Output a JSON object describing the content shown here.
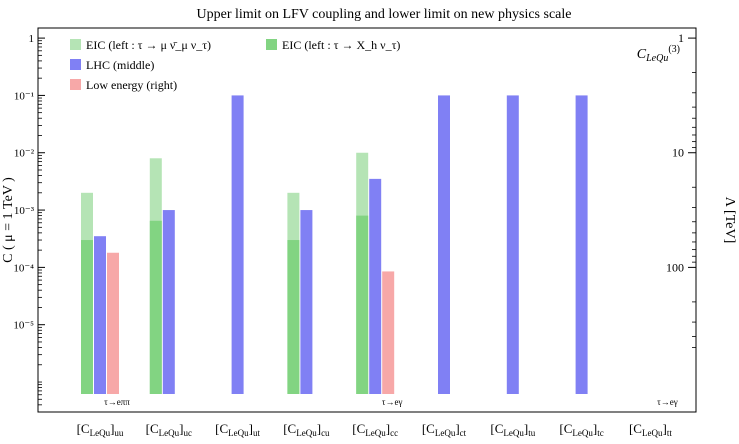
{
  "chart_data": {
    "type": "bar",
    "title": "Upper limit on LFV coupling and lower limit on new physics scale",
    "corner_label": "C_LeQu^(3)",
    "ylabel_left": "C ( μ = 1 TeV )",
    "ylabel_right": "Λ [TeV]",
    "yscale": "log",
    "ylim": [
      3e-07,
      1.5
    ],
    "yticks_left": [
      "1",
      "10⁻¹",
      "10⁻²",
      "10⁻³",
      "10⁻⁴",
      "10⁻⁵"
    ],
    "yticks_left_values": [
      1,
      0.1,
      0.01,
      0.001,
      0.0001,
      1e-05
    ],
    "yticks_right": [
      "1",
      "10",
      "100"
    ],
    "yticks_right_values": [
      1,
      10,
      100
    ],
    "categories": [
      "[C_LeQu]_uu",
      "[C_LeQu]_uc",
      "[C_LeQu]_ut",
      "[C_LeQu]_cu",
      "[C_LeQu]_cc",
      "[C_LeQu]_ct",
      "[C_LeQu]_tu",
      "[C_LeQu]_tc",
      "[C_LeQu]_tt"
    ],
    "series": [
      {
        "name": "EIC (left : τ → μ ν̄_μ ν_τ)",
        "color": "#b5e4b5",
        "values": [
          0.002,
          0.008,
          null,
          0.002,
          0.01,
          null,
          null,
          null,
          null
        ]
      },
      {
        "name": "EIC (left : τ → X_h ν_τ)",
        "color": "#82d482",
        "values": [
          0.0003,
          0.00065,
          null,
          0.0003,
          0.0008,
          null,
          null,
          null,
          null
        ]
      },
      {
        "name": "LHC (middle)",
        "color": "#8080f4",
        "values": [
          0.00035,
          0.001,
          0.1,
          0.001,
          0.0035,
          0.1,
          0.1,
          0.1,
          null
        ]
      },
      {
        "name": "Low energy (right)",
        "color": "#f7a8a8",
        "values": [
          0.00018,
          null,
          null,
          null,
          8.5e-05,
          null,
          null,
          null,
          4.5e-07
        ]
      }
    ],
    "annotations": [
      {
        "category": "[C_LeQu]_uu",
        "text": "τ→eππ"
      },
      {
        "category": "[C_LeQu]_cc",
        "text": "τ→eγ"
      },
      {
        "category": "[C_LeQu]_tt",
        "text": "τ→eγ"
      }
    ],
    "legend_placement": "top-left",
    "grid": false
  }
}
